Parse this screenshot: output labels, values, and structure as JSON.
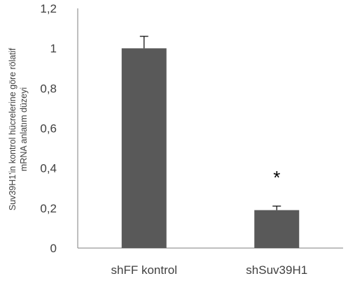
{
  "chart_data": {
    "type": "bar",
    "categories": [
      "shFF kontrol",
      "shSuv39H1"
    ],
    "values": [
      1.0,
      0.19
    ],
    "errors": [
      0.06,
      0.02
    ],
    "annotations": [
      "",
      "*"
    ],
    "ylabel_lines": [
      "Suv39H1'in kontrol hücrelerine göre rölatif",
      "mRNA anlatım düzeyi"
    ],
    "yticks": [
      "0",
      "0,2",
      "0,4",
      "0,6",
      "0,8",
      "1",
      "1,2"
    ],
    "ylim": [
      0,
      1.2
    ],
    "grid": false,
    "bar_color": "#595959",
    "axis_color": "#7f7f7f"
  }
}
